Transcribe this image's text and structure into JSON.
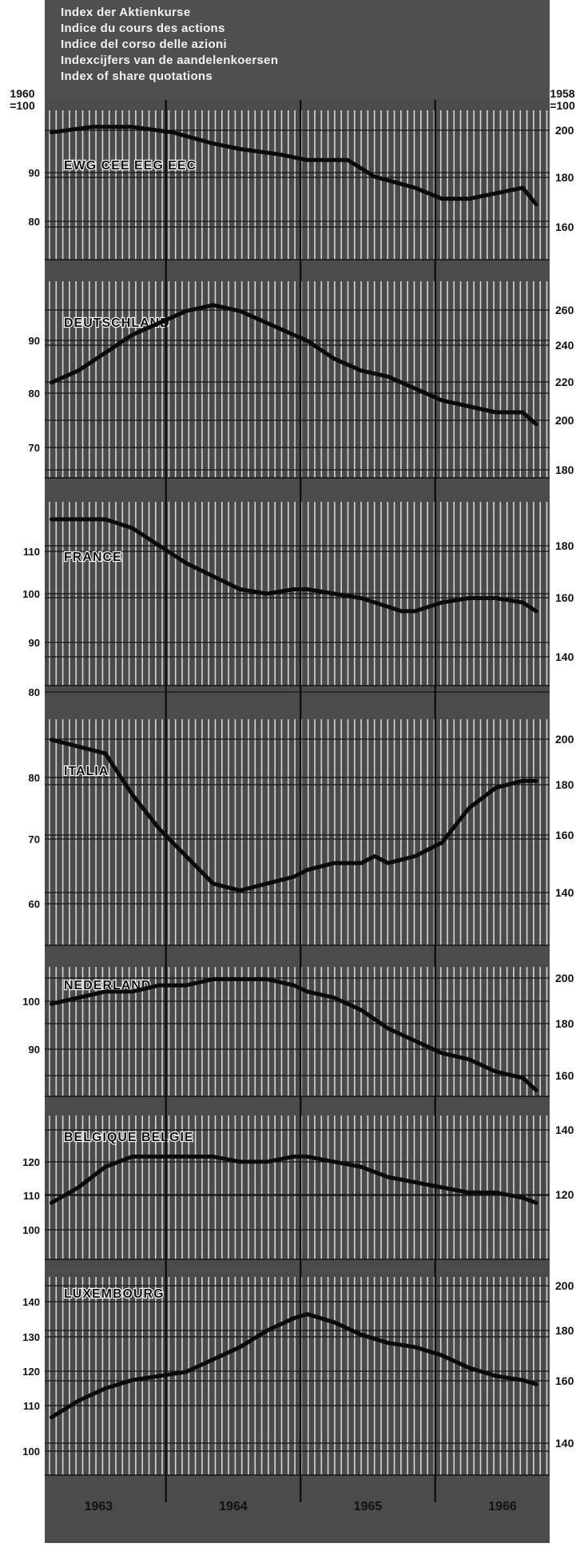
{
  "header": {
    "lines": [
      "Index der Aktienkurse",
      "Indice du cours des actions",
      "Indice del corso delle azioni",
      "Indexcijfers van de aandelenkoersen",
      "Index of share quotations"
    ],
    "left_base": [
      "1960",
      "=100"
    ],
    "right_base": [
      "1958",
      "=100"
    ]
  },
  "colors": {
    "background": "#4b4b4b",
    "grid": "#f0f0f0",
    "line": "#0a0a0a",
    "text": "#ffffff"
  },
  "chart_data": [
    {
      "type": "line",
      "title": "EWG CEE EEG EEC",
      "left_ticks": [
        "90",
        "80"
      ],
      "right_ticks": [
        "200",
        "180",
        "160"
      ],
      "left_ylim": [
        73,
        100
      ],
      "right_ylim": [
        148,
        202
      ],
      "x": [
        1962.6,
        1962.9,
        1963.2,
        1963.5,
        1963.8,
        1964.0,
        1964.3,
        1964.5,
        1964.8,
        1965.0,
        1965.3,
        1965.5,
        1965.7,
        1965.9,
        1966.1,
        1966.2
      ],
      "series": [
        {
          "values": [
            96,
            97,
            97,
            96,
            94,
            93,
            92,
            91,
            91,
            88,
            86,
            84,
            84,
            85,
            86,
            83
          ]
        }
      ]
    },
    {
      "type": "line",
      "title": "DEUTSCHLAND",
      "left_ticks": [
        "90",
        "80",
        "70"
      ],
      "right_ticks": [
        "260",
        "240",
        "220",
        "200",
        "180"
      ],
      "left_ylim": [
        64,
        97
      ],
      "right_ylim": [
        170,
        265
      ],
      "x": [
        1962.6,
        1962.8,
        1963.0,
        1963.2,
        1963.4,
        1963.6,
        1963.8,
        1964.0,
        1964.2,
        1964.4,
        1964.5,
        1964.7,
        1964.9,
        1965.1,
        1965.3,
        1965.5,
        1965.7,
        1965.9,
        1966.1,
        1966.2
      ],
      "series": [
        {
          "values": [
            80,
            82,
            85,
            88,
            90,
            92,
            93,
            92,
            90,
            88,
            87,
            84,
            82,
            81,
            79,
            77,
            76,
            75,
            75,
            73
          ]
        }
      ]
    },
    {
      "type": "line",
      "title": "FRANCE",
      "left_ticks": [
        "110",
        "100",
        "90",
        "80"
      ],
      "right_ticks": [
        "180",
        "160",
        "140"
      ],
      "left_ylim": [
        75,
        117
      ],
      "right_ylim": [
        132,
        192
      ],
      "x": [
        1962.6,
        1962.8,
        1963.0,
        1963.2,
        1963.4,
        1963.6,
        1963.8,
        1964.0,
        1964.2,
        1964.4,
        1964.5,
        1964.7,
        1964.9,
        1965.1,
        1965.2,
        1965.3,
        1965.5,
        1965.7,
        1965.9,
        1966.1,
        1966.2
      ],
      "series": [
        {
          "values": [
            113,
            113,
            113,
            111,
            107,
            103,
            100,
            97,
            96,
            97,
            97,
            96,
            95,
            93,
            92,
            92,
            94,
            95,
            95,
            94,
            92
          ]
        }
      ]
    },
    {
      "type": "line",
      "title": "ITALIA",
      "left_ticks": [
        "80",
        "70",
        "60"
      ],
      "right_ticks": [
        "200",
        "180",
        "160",
        "140"
      ],
      "left_ylim": [
        52,
        85
      ],
      "right_ylim": [
        125,
        208
      ],
      "x": [
        1962.6,
        1962.8,
        1963.0,
        1963.2,
        1963.4,
        1963.6,
        1963.8,
        1964.0,
        1964.2,
        1964.4,
        1964.5,
        1964.7,
        1964.9,
        1965.0,
        1965.1,
        1965.3,
        1965.5,
        1965.7,
        1965.9,
        1966.1,
        1966.2
      ],
      "series": [
        {
          "values": [
            82,
            81,
            80,
            74,
            69,
            65,
            61,
            60,
            61,
            62,
            63,
            64,
            64,
            65,
            64,
            65,
            67,
            72,
            75,
            76,
            76
          ]
        }
      ]
    },
    {
      "type": "line",
      "title": "NEDERLAND",
      "left_ticks": [
        "100",
        "90"
      ],
      "right_ticks": [
        "200",
        "180",
        "160"
      ],
      "left_ylim": [
        85,
        106
      ],
      "right_ylim": [
        150,
        205
      ],
      "x": [
        1962.6,
        1962.8,
        1963.0,
        1963.2,
        1963.4,
        1963.6,
        1963.8,
        1964.0,
        1964.2,
        1964.4,
        1964.5,
        1964.7,
        1964.9,
        1965.1,
        1965.3,
        1965.5,
        1965.7,
        1965.9,
        1966.1,
        1966.2
      ],
      "series": [
        {
          "values": [
            100,
            101,
            102,
            102,
            103,
            103,
            104,
            104,
            104,
            103,
            102,
            101,
            99,
            96,
            94,
            92,
            91,
            89,
            88,
            86
          ]
        }
      ]
    },
    {
      "type": "line",
      "title": "BELGIQUE BELGIE",
      "left_ticks": [
        "120",
        "110",
        "100"
      ],
      "right_ticks": [
        "140",
        "120"
      ],
      "left_ylim": [
        96,
        124
      ],
      "right_ylim": [
        108,
        142
      ],
      "x": [
        1962.6,
        1962.8,
        1963.0,
        1963.2,
        1963.4,
        1963.6,
        1963.8,
        1964.0,
        1964.2,
        1964.4,
        1964.5,
        1964.7,
        1964.9,
        1965.1,
        1965.3,
        1965.5,
        1965.7,
        1965.9,
        1966.1,
        1966.2
      ],
      "series": [
        {
          "values": [
            107,
            110,
            114,
            116,
            116,
            116,
            116,
            115,
            115,
            116,
            116,
            115,
            114,
            112,
            111,
            110,
            109,
            109,
            108,
            107
          ]
        }
      ]
    },
    {
      "type": "line",
      "title": "LUXEMBOURG",
      "left_ticks": [
        "140",
        "130",
        "120",
        "110",
        "100"
      ],
      "right_ticks": [
        "200",
        "180",
        "160",
        "140"
      ],
      "left_ylim": [
        96,
        144
      ],
      "right_ylim": [
        132,
        205
      ],
      "x": [
        1962.6,
        1962.8,
        1963.0,
        1963.2,
        1963.4,
        1963.6,
        1963.8,
        1964.0,
        1964.2,
        1964.4,
        1964.5,
        1964.7,
        1964.9,
        1965.1,
        1965.3,
        1965.5,
        1965.7,
        1965.9,
        1966.1,
        1966.2
      ],
      "series": [
        {
          "values": [
            110,
            114,
            117,
            119,
            120,
            121,
            124,
            127,
            131,
            134,
            135,
            133,
            130,
            128,
            127,
            125,
            122,
            120,
            119,
            118
          ]
        }
      ]
    }
  ],
  "x_axis": {
    "labels": [
      "1963",
      "1964",
      "1965",
      "1966"
    ],
    "year_marks": [
      1963,
      1964,
      1965,
      1966
    ],
    "dividers": [
      1963.45,
      1964.45,
      1965.45
    ]
  }
}
